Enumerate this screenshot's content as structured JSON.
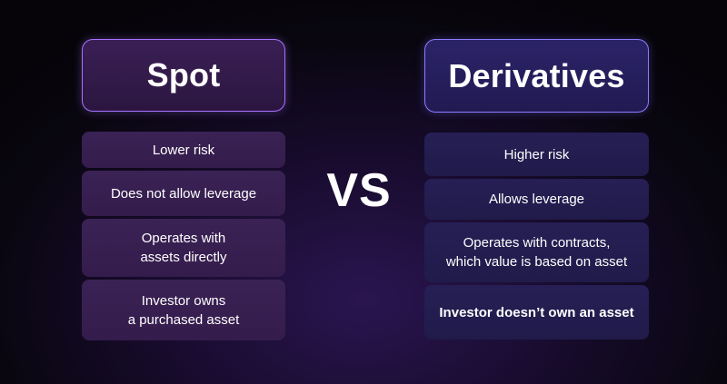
{
  "left": {
    "title": "Spot",
    "items": [
      "Lower risk",
      "Does not allow leverage",
      "Operates with\nassets directly",
      "Investor owns\na purchased asset"
    ]
  },
  "vs_label": "VS",
  "right": {
    "title": "Derivatives",
    "items": [
      "Higher risk",
      "Allows leverage",
      "Operates with contracts,\nwhich value is based on asset",
      "Investor doesn’t own an asset"
    ]
  },
  "colors": {
    "spot_border": "#a772ff",
    "derivatives_border": "#8a7cff",
    "background": "#09060f"
  }
}
